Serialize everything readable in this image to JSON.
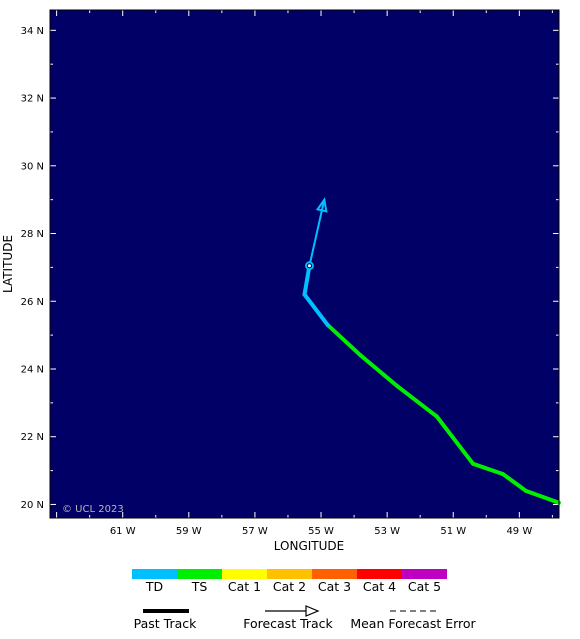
{
  "chart_data": {
    "type": "map",
    "xlabel": "LONGITUDE",
    "ylabel": "LATITUDE",
    "xlim_deg_west": [
      63.2,
      47.8
    ],
    "ylim_deg_north": [
      19.6,
      34.6
    ],
    "x_ticks": [
      {
        "value": 61,
        "label": "61 W"
      },
      {
        "value": 59,
        "label": "59 W"
      },
      {
        "value": 57,
        "label": "57 W"
      },
      {
        "value": 55,
        "label": "55 W"
      },
      {
        "value": 53,
        "label": "53 W"
      },
      {
        "value": 51,
        "label": "51 W"
      },
      {
        "value": 49,
        "label": "49 W"
      }
    ],
    "y_ticks": [
      {
        "value": 20,
        "label": "20 N"
      },
      {
        "value": 22,
        "label": "22 N"
      },
      {
        "value": 24,
        "label": "24 N"
      },
      {
        "value": 26,
        "label": "26 N"
      },
      {
        "value": 28,
        "label": "28 N"
      },
      {
        "value": 30,
        "label": "30 N"
      },
      {
        "value": 32,
        "label": "32 N"
      },
      {
        "value": 34,
        "label": "34 N"
      }
    ],
    "past_track": [
      {
        "lon_w": 47.8,
        "lat_n": 20.05,
        "category": "TS"
      },
      {
        "lon_w": 48.8,
        "lat_n": 20.4,
        "category": "TS"
      },
      {
        "lon_w": 49.5,
        "lat_n": 20.9,
        "category": "TS"
      },
      {
        "lon_w": 50.4,
        "lat_n": 21.2,
        "category": "TS"
      },
      {
        "lon_w": 51.5,
        "lat_n": 22.6,
        "category": "TS"
      },
      {
        "lon_w": 52.7,
        "lat_n": 23.5,
        "category": "TS"
      },
      {
        "lon_w": 53.8,
        "lat_n": 24.4,
        "category": "TS"
      },
      {
        "lon_w": 54.8,
        "lat_n": 25.3,
        "category": "TS"
      },
      {
        "lon_w": 55.5,
        "lat_n": 26.2,
        "category": "TD"
      },
      {
        "lon_w": 55.35,
        "lat_n": 27.05,
        "category": "TD"
      }
    ],
    "current_position": {
      "lon_w": 55.35,
      "lat_n": 27.05
    },
    "forecast_track": [
      {
        "lon_w": 55.35,
        "lat_n": 27.05
      },
      {
        "lon_w": 54.9,
        "lat_n": 29.0
      }
    ],
    "colors": {
      "ocean": "#000066",
      "TD": "#00c0ff",
      "TS": "#00ee00",
      "Cat 1": "#ffff00",
      "Cat 2": "#ffc000",
      "Cat 3": "#ff6000",
      "Cat 4": "#ff0000",
      "Cat 5": "#c000c0"
    }
  },
  "copyright": "© UCL 2023",
  "legend": {
    "categories": [
      {
        "label": "TD",
        "color": "#00c0ff"
      },
      {
        "label": "TS",
        "color": "#00ee00"
      },
      {
        "label": "Cat 1",
        "color": "#ffff00"
      },
      {
        "label": "Cat 2",
        "color": "#ffc000"
      },
      {
        "label": "Cat 3",
        "color": "#ff6000"
      },
      {
        "label": "Cat 4",
        "color": "#ff0000"
      },
      {
        "label": "Cat 5",
        "color": "#c000c0"
      }
    ],
    "track_keys": {
      "past": "Past Track",
      "forecast": "Forecast Track",
      "error": "Mean Forecast Error"
    }
  }
}
